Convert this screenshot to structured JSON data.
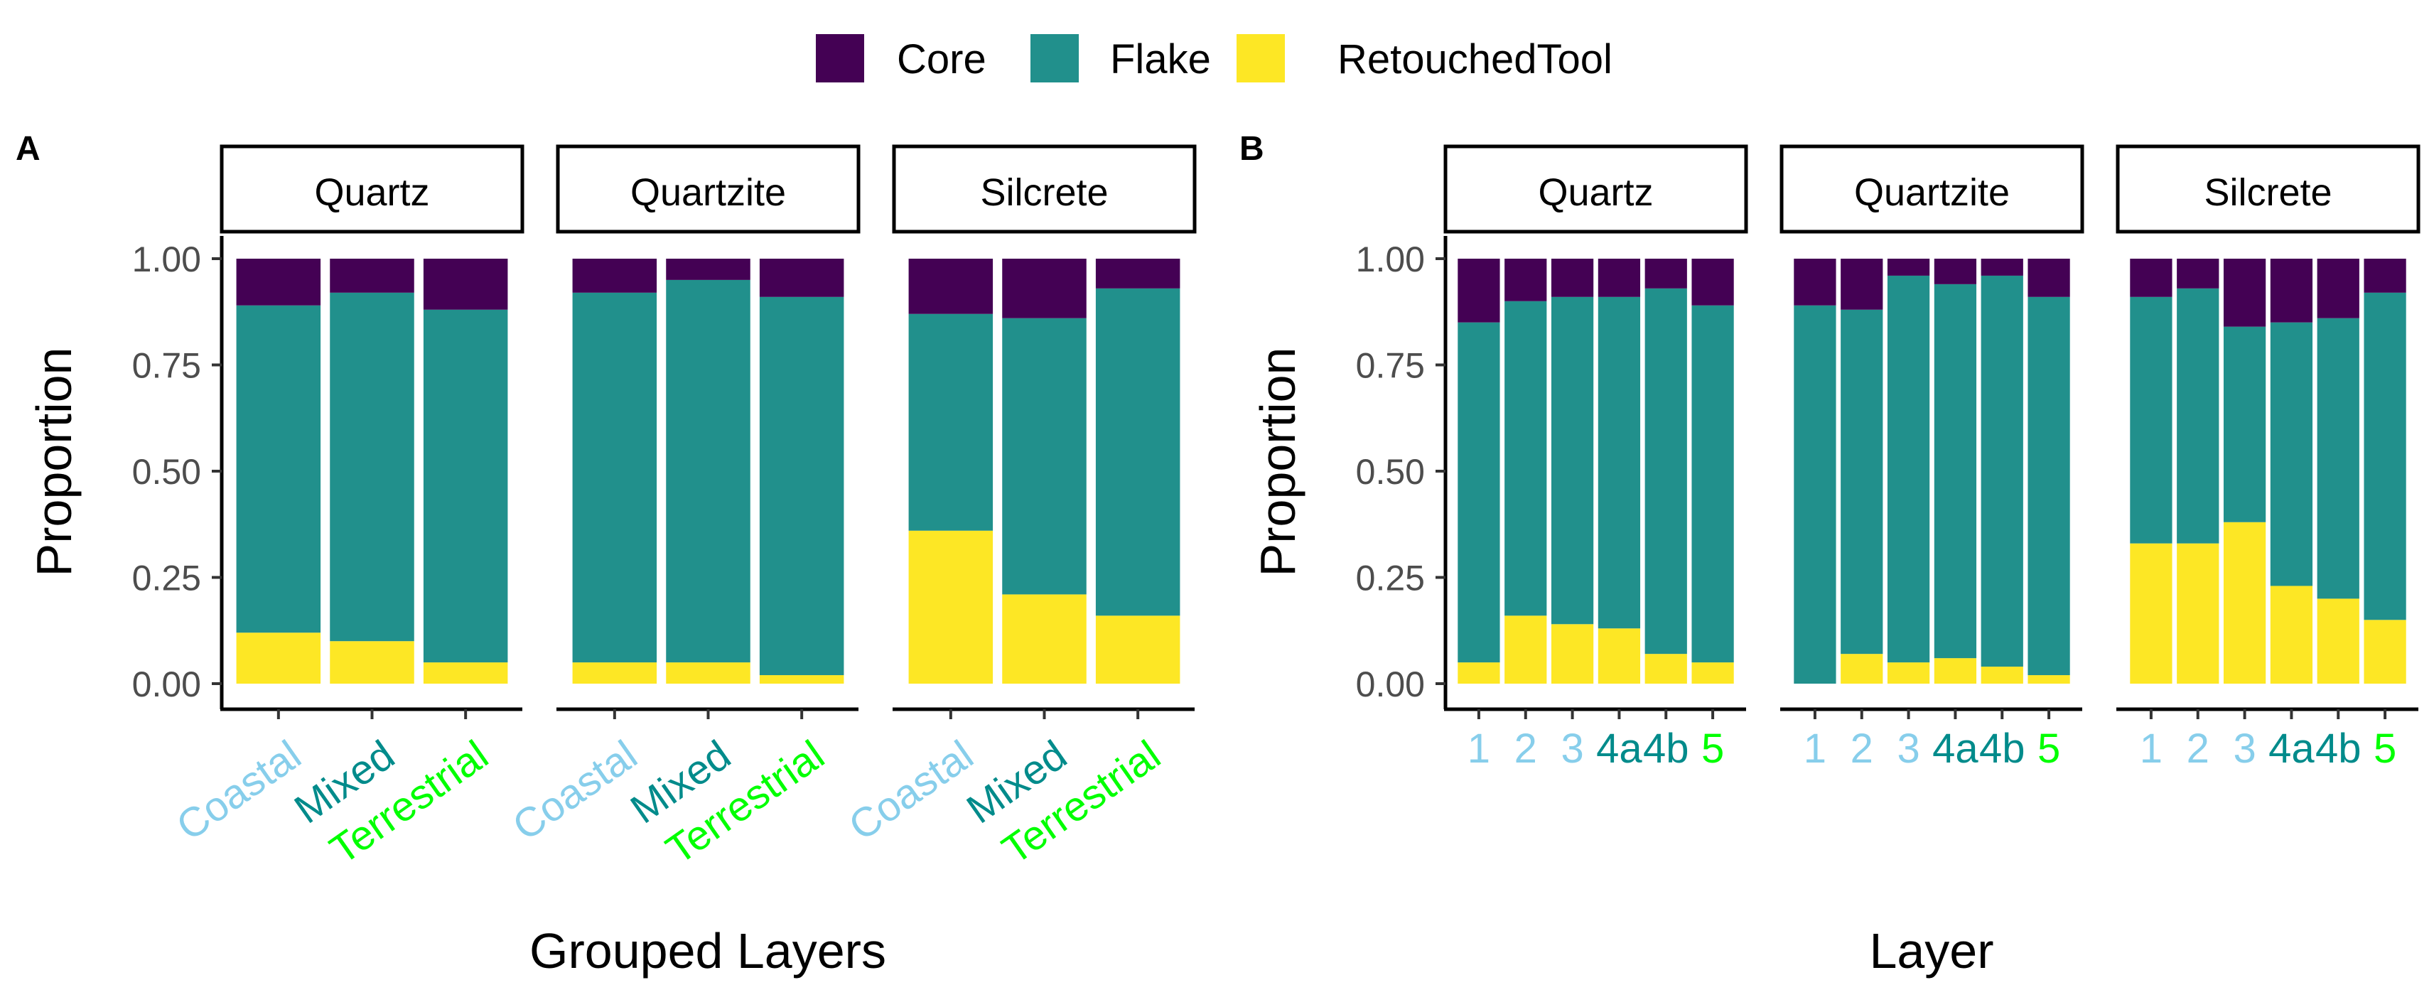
{
  "colors": {
    "Core": "#440154",
    "Flake": "#21908C",
    "RetouchedTool": "#FDE725",
    "tick_coastal": "#87CEEB",
    "tick_mixed": "#008B8B",
    "tick_terrestrial": "#00FF00"
  },
  "legend": [
    "Core",
    "Flake",
    "RetouchedTool"
  ],
  "chart_data": [
    {
      "type": "bar",
      "stacked": true,
      "tag": "A",
      "xlabel": "Grouped Layers",
      "ylabel": "Proportion",
      "ylim": [
        0,
        1
      ],
      "yticks": [
        "0.00",
        "0.25",
        "0.50",
        "0.75",
        "1.00"
      ],
      "categories": [
        "Coastal",
        "Mixed",
        "Terrestrial"
      ],
      "category_colors": [
        "#87CEEB",
        "#008B8B",
        "#00FF00"
      ],
      "facets": [
        {
          "name": "Quartz",
          "series": [
            {
              "name": "RetouchedTool",
              "values": [
                0.12,
                0.1,
                0.05
              ]
            },
            {
              "name": "Flake",
              "values": [
                0.77,
                0.82,
                0.83
              ]
            },
            {
              "name": "Core",
              "values": [
                0.11,
                0.08,
                0.12
              ]
            }
          ]
        },
        {
          "name": "Quartzite",
          "series": [
            {
              "name": "RetouchedTool",
              "values": [
                0.05,
                0.05,
                0.02
              ]
            },
            {
              "name": "Flake",
              "values": [
                0.87,
                0.9,
                0.89
              ]
            },
            {
              "name": "Core",
              "values": [
                0.08,
                0.05,
                0.09
              ]
            }
          ]
        },
        {
          "name": "Silcrete",
          "series": [
            {
              "name": "RetouchedTool",
              "values": [
                0.36,
                0.21,
                0.16
              ]
            },
            {
              "name": "Flake",
              "values": [
                0.51,
                0.65,
                0.77
              ]
            },
            {
              "name": "Core",
              "values": [
                0.13,
                0.14,
                0.07
              ]
            }
          ]
        }
      ]
    },
    {
      "type": "bar",
      "stacked": true,
      "tag": "B",
      "xlabel": "Layer",
      "ylabel": "Proportion",
      "ylim": [
        0,
        1
      ],
      "yticks": [
        "0.00",
        "0.25",
        "0.50",
        "0.75",
        "1.00"
      ],
      "categories": [
        "1",
        "2",
        "3",
        "4a",
        "4b",
        "5"
      ],
      "category_colors": [
        "#87CEEB",
        "#87CEEB",
        "#87CEEB",
        "#008B8B",
        "#008B8B",
        "#00FF00"
      ],
      "facets": [
        {
          "name": "Quartz",
          "series": [
            {
              "name": "RetouchedTool",
              "values": [
                0.05,
                0.16,
                0.14,
                0.13,
                0.07,
                0.05
              ]
            },
            {
              "name": "Flake",
              "values": [
                0.8,
                0.74,
                0.77,
                0.78,
                0.86,
                0.84
              ]
            },
            {
              "name": "Core",
              "values": [
                0.15,
                0.1,
                0.09,
                0.09,
                0.07,
                0.11
              ]
            }
          ]
        },
        {
          "name": "Quartzite",
          "series": [
            {
              "name": "RetouchedTool",
              "values": [
                0.0,
                0.07,
                0.05,
                0.06,
                0.04,
                0.02
              ]
            },
            {
              "name": "Flake",
              "values": [
                0.89,
                0.81,
                0.91,
                0.88,
                0.92,
                0.89
              ]
            },
            {
              "name": "Core",
              "values": [
                0.11,
                0.12,
                0.04,
                0.06,
                0.04,
                0.09
              ]
            }
          ]
        },
        {
          "name": "Silcrete",
          "series": [
            {
              "name": "RetouchedTool",
              "values": [
                0.33,
                0.33,
                0.38,
                0.23,
                0.2,
                0.15
              ]
            },
            {
              "name": "Flake",
              "values": [
                0.58,
                0.6,
                0.46,
                0.62,
                0.66,
                0.77
              ]
            },
            {
              "name": "Core",
              "values": [
                0.09,
                0.07,
                0.16,
                0.15,
                0.14,
                0.08
              ]
            }
          ]
        }
      ]
    }
  ]
}
